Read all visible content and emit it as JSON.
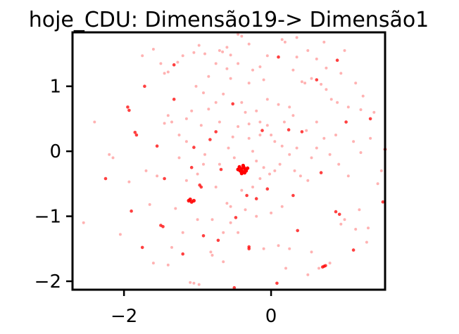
{
  "chart_data": {
    "type": "scatter",
    "title": "hoje_CDU: Dimensão19-> Dimensão1",
    "xlabel": "",
    "ylabel": "",
    "xlim": [
      -2.7,
      1.55
    ],
    "ylim": [
      -2.13,
      1.83
    ],
    "xticks": [
      {
        "value": -2,
        "label": "−2"
      },
      {
        "value": 0,
        "label": "0"
      }
    ],
    "yticks": [
      {
        "value": 1,
        "label": "1"
      },
      {
        "value": 0,
        "label": "0"
      },
      {
        "value": -1,
        "label": "−1"
      },
      {
        "value": -2,
        "label": "−2"
      }
    ],
    "grid": false,
    "point_color": "#ff0000",
    "points": [
      {
        "x": -1.72,
        "y": 1.0,
        "a": 0.75
      },
      {
        "x": -1.32,
        "y": 1.33,
        "a": 0.75
      },
      {
        "x": -1.95,
        "y": 0.68,
        "a": 0.75
      },
      {
        "x": -1.93,
        "y": 0.63,
        "a": 0.75
      },
      {
        "x": -1.85,
        "y": 0.29,
        "a": 0.75
      },
      {
        "x": -1.83,
        "y": 0.25,
        "a": 0.75
      },
      {
        "x": -1.55,
        "y": 0.08,
        "a": 0.75
      },
      {
        "x": -2.25,
        "y": -0.42,
        "a": 0.75
      },
      {
        "x": -1.45,
        "y": -0.42,
        "a": 0.75
      },
      {
        "x": -1.05,
        "y": 0.06,
        "a": 0.75
      },
      {
        "x": -0.83,
        "y": 0.18,
        "a": 0.75
      },
      {
        "x": -0.97,
        "y": -0.52,
        "a": 0.75
      },
      {
        "x": -0.95,
        "y": -0.55,
        "a": 0.75
      },
      {
        "x": -1.08,
        "y": -0.25,
        "a": 0.75
      },
      {
        "x": -1.1,
        "y": -0.74,
        "a": 0.9
      },
      {
        "x": -1.05,
        "y": -0.76,
        "a": 0.9
      },
      {
        "x": -1.08,
        "y": -0.78,
        "a": 0.9
      },
      {
        "x": -1.12,
        "y": -0.76,
        "a": 0.9
      },
      {
        "x": -1.9,
        "y": -0.92,
        "a": 0.75
      },
      {
        "x": -1.5,
        "y": -1.14,
        "a": 0.75
      },
      {
        "x": -1.47,
        "y": -1.16,
        "a": 0.75
      },
      {
        "x": -1.2,
        "y": -1.58,
        "a": 0.75
      },
      {
        "x": -1.75,
        "y": -1.48,
        "a": 0.75
      },
      {
        "x": -0.92,
        "y": -1.3,
        "a": 0.75
      },
      {
        "x": -0.72,
        "y": -1.37,
        "a": 0.75
      },
      {
        "x": -0.3,
        "y": -1.47,
        "a": 0.75
      },
      {
        "x": -0.3,
        "y": -1.5,
        "a": 0.75
      },
      {
        "x": -0.48,
        "y": -1.02,
        "a": 0.75
      },
      {
        "x": -0.33,
        "y": -0.68,
        "a": 0.75
      },
      {
        "x": -0.2,
        "y": -0.73,
        "a": 0.75
      },
      {
        "x": -0.05,
        "y": -0.58,
        "a": 0.75
      },
      {
        "x": 0.3,
        "y": -0.68,
        "a": 0.75
      },
      {
        "x": 0.36,
        "y": -1.22,
        "a": 0.75
      },
      {
        "x": 0.68,
        "y": -0.33,
        "a": 0.75
      },
      {
        "x": 0.88,
        "y": -0.93,
        "a": 0.75
      },
      {
        "x": 0.93,
        "y": -0.97,
        "a": 0.75
      },
      {
        "x": 1.52,
        "y": -0.78,
        "a": 0.75
      },
      {
        "x": 1.55,
        "y": 0.03,
        "a": 0.75
      },
      {
        "x": 1.35,
        "y": 0.5,
        "a": 0.75
      },
      {
        "x": 0.42,
        "y": 0.3,
        "a": 0.75
      },
      {
        "x": 0.24,
        "y": 0.33,
        "a": 0.75
      },
      {
        "x": -0.75,
        "y": 0.3,
        "a": 0.75
      },
      {
        "x": -0.68,
        "y": -0.28,
        "a": 0.75
      },
      {
        "x": -1.32,
        "y": 0.8,
        "a": 0.75
      },
      {
        "x": -0.52,
        "y": 0.73,
        "a": 0.75
      },
      {
        "x": 0.08,
        "y": -2.03,
        "a": 0.75
      },
      {
        "x": -0.5,
        "y": -2.1,
        "a": 0.75
      },
      {
        "x": 0.7,
        "y": -1.78,
        "a": 0.75
      },
      {
        "x": 0.72,
        "y": -1.77,
        "a": 0.75
      },
      {
        "x": 0.74,
        "y": -1.76,
        "a": 0.75
      },
      {
        "x": 1.12,
        "y": -1.52,
        "a": 0.75
      },
      {
        "x": 0.1,
        "y": 1.45,
        "a": 0.75
      },
      {
        "x": 0.62,
        "y": 1.1,
        "a": 0.75
      },
      {
        "x": 1.02,
        "y": 0.45,
        "a": 0.75
      },
      {
        "x": 0.9,
        "y": 1.4,
        "a": 0.75
      },
      {
        "x": -0.12,
        "y": 0.32,
        "a": 0.75
      },
      {
        "x": -0.4,
        "y": -0.27,
        "a": 1
      },
      {
        "x": -0.37,
        "y": -0.25,
        "a": 1
      },
      {
        "x": -0.35,
        "y": -0.28,
        "a": 1
      },
      {
        "x": -0.42,
        "y": -0.3,
        "a": 1
      },
      {
        "x": -0.39,
        "y": -0.31,
        "a": 1
      },
      {
        "x": -0.34,
        "y": -0.3,
        "a": 1
      },
      {
        "x": -0.38,
        "y": -0.22,
        "a": 1
      },
      {
        "x": -0.43,
        "y": -0.24,
        "a": 1
      },
      {
        "x": -0.36,
        "y": -0.33,
        "a": 1
      },
      {
        "x": -0.32,
        "y": -0.26,
        "a": 1
      },
      {
        "x": -0.4,
        "y": -0.34,
        "a": 1
      },
      {
        "x": -0.45,
        "y": -0.28,
        "a": 1
      },
      {
        "x": -1.75,
        "y": 1.47,
        "a": 0.3
      },
      {
        "x": -1.6,
        "y": 1.57,
        "a": 0.3
      },
      {
        "x": -1.5,
        "y": 1.35,
        "a": 0.3
      },
      {
        "x": -1.45,
        "y": 1.2,
        "a": 0.3
      },
      {
        "x": -1.4,
        "y": 1.22,
        "a": 0.3
      },
      {
        "x": -1.27,
        "y": 1.37,
        "a": 0.3
      },
      {
        "x": -1.2,
        "y": 1.47,
        "a": 0.3
      },
      {
        "x": -1.05,
        "y": 1.52,
        "a": 0.3
      },
      {
        "x": -0.98,
        "y": 1.63,
        "a": 0.3
      },
      {
        "x": -0.9,
        "y": 1.5,
        "a": 0.3
      },
      {
        "x": -0.7,
        "y": 1.55,
        "a": 0.3
      },
      {
        "x": -0.66,
        "y": 1.53,
        "a": 0.3
      },
      {
        "x": -0.6,
        "y": 1.6,
        "a": 0.3
      },
      {
        "x": -0.55,
        "y": 1.48,
        "a": 0.3
      },
      {
        "x": -0.45,
        "y": 1.8,
        "a": 0.3
      },
      {
        "x": -0.4,
        "y": 1.77,
        "a": 0.3
      },
      {
        "x": -0.3,
        "y": 1.65,
        "a": 0.3
      },
      {
        "x": -0.05,
        "y": 1.47,
        "a": 0.3
      },
      {
        "x": 0.15,
        "y": 1.72,
        "a": 0.3
      },
      {
        "x": 0.19,
        "y": 1.68,
        "a": 0.3
      },
      {
        "x": 0.35,
        "y": 1.45,
        "a": 0.3
      },
      {
        "x": 0.5,
        "y": 1.55,
        "a": 0.3
      },
      {
        "x": 0.42,
        "y": 1.07,
        "a": 0.3
      },
      {
        "x": 0.46,
        "y": 1.05,
        "a": 0.3
      },
      {
        "x": 0.55,
        "y": 1.12,
        "a": 0.3
      },
      {
        "x": 0.68,
        "y": 1.03,
        "a": 0.3
      },
      {
        "x": 0.75,
        "y": 0.95,
        "a": 0.3
      },
      {
        "x": 0.82,
        "y": 0.8,
        "a": 0.3
      },
      {
        "x": 0.9,
        "y": 0.75,
        "a": 0.3
      },
      {
        "x": 1.05,
        "y": 0.68,
        "a": 0.3
      },
      {
        "x": 1.22,
        "y": 0.64,
        "a": 0.3
      },
      {
        "x": 1.4,
        "y": 0.6,
        "a": 0.3
      },
      {
        "x": 0.25,
        "y": 0.68,
        "a": 0.3
      },
      {
        "x": 0.1,
        "y": 0.72,
        "a": 0.3
      },
      {
        "x": -0.05,
        "y": 0.8,
        "a": 0.3
      },
      {
        "x": -0.2,
        "y": 0.62,
        "a": 0.3
      },
      {
        "x": -0.35,
        "y": 0.6,
        "a": 0.3
      },
      {
        "x": -0.4,
        "y": 0.75,
        "a": 0.3
      },
      {
        "x": -0.65,
        "y": 0.88,
        "a": 0.3
      },
      {
        "x": -0.75,
        "y": 0.75,
        "a": 0.3
      },
      {
        "x": -0.85,
        "y": 0.65,
        "a": 0.3
      },
      {
        "x": -1.08,
        "y": 0.62,
        "a": 0.3
      },
      {
        "x": -1.15,
        "y": 0.5,
        "a": 0.3
      },
      {
        "x": -1.35,
        "y": 0.45,
        "a": 0.3
      },
      {
        "x": -1.4,
        "y": 0.55,
        "a": 0.3
      },
      {
        "x": -1.45,
        "y": 0.43,
        "a": 0.3
      },
      {
        "x": -2.4,
        "y": 0.45,
        "a": 0.3
      },
      {
        "x": -2.2,
        "y": -0.05,
        "a": 0.3
      },
      {
        "x": -2.15,
        "y": -0.1,
        "a": 0.3
      },
      {
        "x": -1.93,
        "y": -0.47,
        "a": 0.3
      },
      {
        "x": -1.65,
        "y": -0.82,
        "a": 0.3
      },
      {
        "x": -1.55,
        "y": -0.38,
        "a": 0.3
      },
      {
        "x": -1.7,
        "y": -0.3,
        "a": 0.3
      },
      {
        "x": -2.05,
        "y": -1.28,
        "a": 0.3
      },
      {
        "x": -2.55,
        "y": -1.1,
        "a": 0.3
      },
      {
        "x": -1.3,
        "y": -0.88,
        "a": 0.3
      },
      {
        "x": -1.35,
        "y": -1.48,
        "a": 0.3
      },
      {
        "x": -1.6,
        "y": -1.72,
        "a": 0.3
      },
      {
        "x": -1.4,
        "y": -1.75,
        "a": 0.3
      },
      {
        "x": -1.1,
        "y": -2.02,
        "a": 0.3
      },
      {
        "x": -1.05,
        "y": -2.03,
        "a": 0.3
      },
      {
        "x": -0.98,
        "y": -2.05,
        "a": 0.3
      },
      {
        "x": -0.82,
        "y": -1.55,
        "a": 0.3
      },
      {
        "x": -0.8,
        "y": -1.6,
        "a": 0.3
      },
      {
        "x": -0.65,
        "y": -1.7,
        "a": 0.3
      },
      {
        "x": -0.55,
        "y": -1.1,
        "a": 0.3
      },
      {
        "x": -0.55,
        "y": -0.85,
        "a": 0.3
      },
      {
        "x": -0.6,
        "y": -0.8,
        "a": 0.3
      },
      {
        "x": -0.75,
        "y": -0.55,
        "a": 0.3
      },
      {
        "x": -0.7,
        "y": -0.2,
        "a": 0.3
      },
      {
        "x": -0.9,
        "y": -0.05,
        "a": 0.3
      },
      {
        "x": -0.92,
        "y": -0.2,
        "a": 0.3
      },
      {
        "x": -1.0,
        "y": -0.35,
        "a": 0.3
      },
      {
        "x": -1.15,
        "y": -0.45,
        "a": 0.3
      },
      {
        "x": -1.25,
        "y": -0.1,
        "a": 0.3
      },
      {
        "x": -0.1,
        "y": -1.5,
        "a": 0.3
      },
      {
        "x": 0.1,
        "y": -1.45,
        "a": 0.3
      },
      {
        "x": 0.2,
        "y": -1.8,
        "a": 0.3
      },
      {
        "x": 0.25,
        "y": -1.5,
        "a": 0.3
      },
      {
        "x": 0.5,
        "y": -1.9,
        "a": 0.3
      },
      {
        "x": 0.55,
        "y": -1.55,
        "a": 0.3
      },
      {
        "x": 0.65,
        "y": -1.8,
        "a": 0.3
      },
      {
        "x": 0.8,
        "y": -1.72,
        "a": 0.3
      },
      {
        "x": 0.95,
        "y": -1.12,
        "a": 0.3
      },
      {
        "x": 1.0,
        "y": -1.05,
        "a": 0.3
      },
      {
        "x": 1.15,
        "y": -1.2,
        "a": 0.3
      },
      {
        "x": 1.32,
        "y": -1.18,
        "a": 0.3
      },
      {
        "x": 1.3,
        "y": -1.4,
        "a": 0.3
      },
      {
        "x": 1.2,
        "y": -0.9,
        "a": 0.3
      },
      {
        "x": 1.45,
        "y": -0.5,
        "a": 0.3
      },
      {
        "x": 1.5,
        "y": -0.3,
        "a": 0.3
      },
      {
        "x": 1.05,
        "y": -0.38,
        "a": 0.3
      },
      {
        "x": 0.92,
        "y": -0.2,
        "a": 0.3
      },
      {
        "x": 0.8,
        "y": -0.05,
        "a": 0.3
      },
      {
        "x": 0.62,
        "y": 0.05,
        "a": 0.3
      },
      {
        "x": 0.55,
        "y": -0.1,
        "a": 0.3
      },
      {
        "x": 0.5,
        "y": -0.45,
        "a": 0.3
      },
      {
        "x": 0.4,
        "y": -0.38,
        "a": 0.3
      },
      {
        "x": 0.32,
        "y": -0.3,
        "a": 0.3
      },
      {
        "x": 0.25,
        "y": -0.05,
        "a": 0.3
      },
      {
        "x": 0.35,
        "y": 0.05,
        "a": 0.3
      },
      {
        "x": 0.15,
        "y": 0.08,
        "a": 0.3
      },
      {
        "x": 0.05,
        "y": 0.15,
        "a": 0.3
      },
      {
        "x": 0.0,
        "y": 0.25,
        "a": 0.3
      },
      {
        "x": -0.05,
        "y": 0.4,
        "a": 0.3
      },
      {
        "x": -0.15,
        "y": 0.45,
        "a": 0.3
      },
      {
        "x": -0.3,
        "y": 0.42,
        "a": 0.3
      },
      {
        "x": -0.45,
        "y": 0.38,
        "a": 0.3
      },
      {
        "x": -0.52,
        "y": 0.22,
        "a": 0.3
      },
      {
        "x": -0.58,
        "y": 0.05,
        "a": 0.3
      },
      {
        "x": -0.5,
        "y": -0.1,
        "a": 0.3
      },
      {
        "x": -0.25,
        "y": 0.0,
        "a": 0.3
      },
      {
        "x": -0.2,
        "y": -0.15,
        "a": 0.3
      },
      {
        "x": -0.1,
        "y": -0.25,
        "a": 0.3
      },
      {
        "x": -0.02,
        "y": -0.35,
        "a": 0.3
      },
      {
        "x": 0.05,
        "y": -0.3,
        "a": 0.3
      },
      {
        "x": -0.15,
        "y": -0.42,
        "a": 0.3
      },
      {
        "x": -0.25,
        "y": -0.55,
        "a": 0.3
      },
      {
        "x": -0.4,
        "y": -0.6,
        "a": 0.3
      },
      {
        "x": -0.3,
        "y": 0.2,
        "a": 0.3
      },
      {
        "x": -0.15,
        "y": 0.25,
        "a": 0.3
      },
      {
        "x": 0.12,
        "y": -0.2,
        "a": 0.3
      },
      {
        "x": 0.18,
        "y": 0.45,
        "a": 0.3
      },
      {
        "x": 0.3,
        "y": 0.55,
        "a": 0.3
      },
      {
        "x": 0.48,
        "y": 0.32,
        "a": 0.3
      },
      {
        "x": 0.62,
        "y": 0.45,
        "a": 0.3
      },
      {
        "x": 0.72,
        "y": 0.2,
        "a": 0.3
      },
      {
        "x": 0.88,
        "y": 0.25,
        "a": 0.3
      },
      {
        "x": 1.12,
        "y": 0.15,
        "a": 0.3
      },
      {
        "x": 1.22,
        "y": -0.02,
        "a": 0.3
      },
      {
        "x": 1.35,
        "y": 0.2,
        "a": 0.3
      },
      {
        "x": 1.25,
        "y": 0.85,
        "a": 0.3
      },
      {
        "x": 1.15,
        "y": 1.05,
        "a": 0.3
      },
      {
        "x": 0.95,
        "y": 1.2,
        "a": 0.3
      },
      {
        "x": 0.75,
        "y": 1.28,
        "a": 0.3
      },
      {
        "x": 0.62,
        "y": 1.42,
        "a": 0.3
      },
      {
        "x": 0.3,
        "y": 1.25,
        "a": 0.3
      },
      {
        "x": -0.1,
        "y": 1.1,
        "a": 0.3
      },
      {
        "x": -0.3,
        "y": 1.05,
        "a": 0.3
      },
      {
        "x": -0.55,
        "y": 1.12,
        "a": 0.3
      },
      {
        "x": -0.85,
        "y": 1.15,
        "a": 0.3
      },
      {
        "x": -1.02,
        "y": 1.0,
        "a": 0.3
      },
      {
        "x": -0.92,
        "y": 0.9,
        "a": 0.3
      },
      {
        "x": -0.7,
        "y": 0.45,
        "a": 0.3
      },
      {
        "x": -0.95,
        "y": 0.4,
        "a": 0.3
      },
      {
        "x": -1.25,
        "y": 0.25,
        "a": 0.3
      },
      {
        "x": -1.15,
        "y": 0.15,
        "a": 0.3
      },
      {
        "x": -0.35,
        "y": -0.9,
        "a": 0.3
      },
      {
        "x": -0.2,
        "y": -1.0,
        "a": 0.3
      },
      {
        "x": 0.0,
        "y": -0.95,
        "a": 0.3
      },
      {
        "x": 0.15,
        "y": -0.85,
        "a": 0.3
      },
      {
        "x": -0.65,
        "y": -1.25,
        "a": 0.3
      },
      {
        "x": -0.45,
        "y": -1.25,
        "a": 0.3
      },
      {
        "x": -0.8,
        "y": -1.05,
        "a": 0.3
      },
      {
        "x": -1.0,
        "y": -1.05,
        "a": 0.3
      },
      {
        "x": -1.2,
        "y": -1.25,
        "a": 0.3
      },
      {
        "x": 1.0,
        "y": 1.55,
        "a": 0.3
      },
      {
        "x": 0.72,
        "y": 1.68,
        "a": 0.3
      },
      {
        "x": 0.35,
        "y": 1.75,
        "a": 0.3
      },
      {
        "x": -0.15,
        "y": 1.3,
        "a": 0.3
      },
      {
        "x": -0.25,
        "y": 1.25,
        "a": 0.3
      },
      {
        "x": -0.45,
        "y": 1.35,
        "a": 0.3
      },
      {
        "x": -0.6,
        "y": 1.27,
        "a": 0.3
      },
      {
        "x": -0.75,
        "y": 1.35,
        "a": 0.3
      }
    ]
  }
}
